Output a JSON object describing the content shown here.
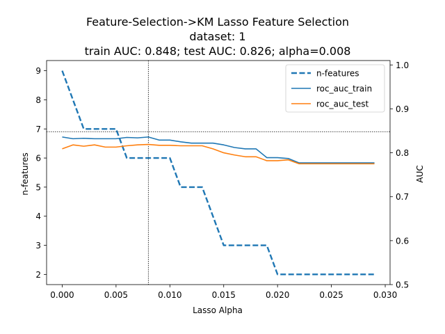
{
  "chart_data": {
    "type": "line",
    "title_lines": [
      "Feature-Selection->KM Lasso Feature Selection",
      "dataset: 1",
      "train AUC: 0.848; test AUC: 0.826; alpha=0.008"
    ],
    "xlabel": "Lasso Alpha",
    "ylabel_left": "n-features",
    "ylabel_right": "AUC",
    "x_ticks": [
      "0.000",
      "0.005",
      "0.010",
      "0.015",
      "0.020",
      "0.025",
      "0.030"
    ],
    "y_left_ticks": [
      "2",
      "3",
      "4",
      "5",
      "6",
      "7",
      "8",
      "9"
    ],
    "y_right_ticks": [
      "0.5",
      "0.6",
      "0.7",
      "0.8",
      "0.9",
      "1.0"
    ],
    "xlim": [
      -0.00145,
      0.03045
    ],
    "ylim_left": [
      1.65,
      9.35
    ],
    "ylim_right": [
      0.5,
      1.01
    ],
    "legend_position": "upper right",
    "grid": false,
    "x": [
      0.0,
      0.001,
      0.002,
      0.003,
      0.004,
      0.005,
      0.006,
      0.007,
      0.008,
      0.009,
      0.01,
      0.011,
      0.012,
      0.013,
      0.014,
      0.015,
      0.016,
      0.017,
      0.018,
      0.019,
      0.02,
      0.021,
      0.022,
      0.023,
      0.024,
      0.025,
      0.026,
      0.027,
      0.028,
      0.029
    ],
    "series": [
      {
        "name": "n-features",
        "axis": "left",
        "color": "#1f77b4",
        "dashed": true,
        "values": [
          9,
          8,
          7,
          7,
          7,
          7,
          6,
          6,
          6,
          6,
          6,
          5,
          5,
          5,
          4,
          3,
          3,
          3,
          3,
          3,
          2,
          2,
          2,
          2,
          2,
          2,
          2,
          2,
          2,
          2
        ]
      },
      {
        "name": "roc_auc_train",
        "axis": "right",
        "color": "#1f77b4",
        "dashed": false,
        "values": [
          0.836,
          0.832,
          0.833,
          0.832,
          0.832,
          0.832,
          0.835,
          0.834,
          0.836,
          0.829,
          0.829,
          0.825,
          0.822,
          0.822,
          0.822,
          0.818,
          0.812,
          0.809,
          0.809,
          0.789,
          0.789,
          0.787,
          0.777,
          0.777,
          0.777,
          0.777,
          0.777,
          0.777,
          0.777,
          0.777
        ]
      },
      {
        "name": "roc_auc_test",
        "axis": "right",
        "color": "#ff7f0e",
        "dashed": false,
        "values": [
          0.809,
          0.818,
          0.815,
          0.818,
          0.813,
          0.813,
          0.816,
          0.818,
          0.819,
          0.817,
          0.817,
          0.816,
          0.816,
          0.816,
          0.809,
          0.8,
          0.795,
          0.791,
          0.791,
          0.782,
          0.782,
          0.784,
          0.775,
          0.775,
          0.775,
          0.775,
          0.775,
          0.775,
          0.775,
          0.775
        ]
      }
    ],
    "reference_lines": {
      "vertical_x": 0.008,
      "horizontal_auc": 0.848
    }
  }
}
